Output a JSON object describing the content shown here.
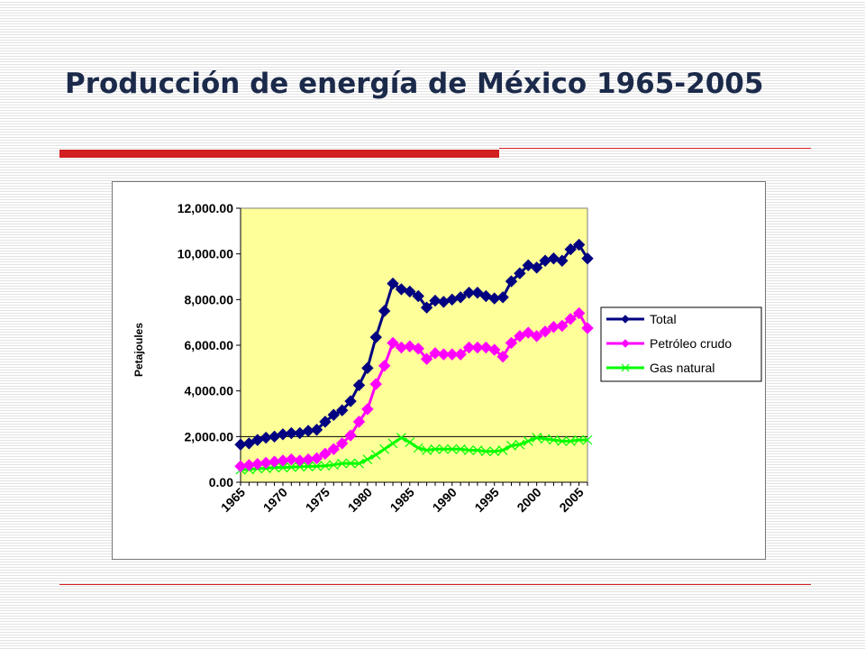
{
  "slide": {
    "title": "Producción de energía de México 1965-2005"
  },
  "chart_data": {
    "type": "line",
    "title": "",
    "xlabel": "",
    "ylabel": "Petajoules",
    "ylim": [
      0,
      12000
    ],
    "yticks": [
      "0.00",
      "2,000.00",
      "4,000.00",
      "6,000.00",
      "8,000.00",
      "10,000.00",
      "12,000.00"
    ],
    "xticks": [
      "1965",
      "1970",
      "1975",
      "1980",
      "1985",
      "1990",
      "1995",
      "2000",
      "2005"
    ],
    "x": [
      1965,
      1966,
      1967,
      1968,
      1969,
      1970,
      1971,
      1972,
      1973,
      1974,
      1975,
      1976,
      1977,
      1978,
      1979,
      1980,
      1981,
      1982,
      1983,
      1984,
      1985,
      1986,
      1987,
      1988,
      1989,
      1990,
      1991,
      1992,
      1993,
      1994,
      1995,
      1996,
      1997,
      1998,
      1999,
      2000,
      2001,
      2002,
      2003,
      2004,
      2005,
      2006
    ],
    "grid": "horizontal at 2,000.00 only",
    "plot_background": "#ffff99",
    "legend": {
      "placement": "right"
    },
    "series": [
      {
        "name": "Total",
        "color": "#000080",
        "marker": "diamond",
        "values": [
          1650,
          1700,
          1850,
          1950,
          2000,
          2100,
          2150,
          2150,
          2250,
          2300,
          2650,
          2950,
          3150,
          3550,
          4250,
          5000,
          6350,
          7500,
          8700,
          8450,
          8350,
          8150,
          7650,
          7950,
          7900,
          8000,
          8100,
          8300,
          8300,
          8150,
          8050,
          8100,
          8800,
          9150,
          9500,
          9400,
          9700,
          9800,
          9700,
          10200,
          10400,
          9800
        ]
      },
      {
        "name": "Petróleo crudo",
        "color": "#ff00ff",
        "marker": "diamond",
        "values": [
          700,
          750,
          800,
          850,
          900,
          950,
          1000,
          950,
          1000,
          1050,
          1250,
          1450,
          1700,
          2050,
          2650,
          3200,
          4300,
          5100,
          6100,
          5900,
          5950,
          5850,
          5400,
          5650,
          5600,
          5600,
          5600,
          5900,
          5900,
          5900,
          5800,
          5500,
          6100,
          6400,
          6550,
          6400,
          6600,
          6800,
          6850,
          7150,
          7400,
          6750
        ]
      },
      {
        "name": "Gas natural",
        "color": "#00ff00",
        "marker": "x",
        "values": [
          550,
          560,
          600,
          610,
          650,
          640,
          660,
          680,
          690,
          700,
          720,
          760,
          820,
          830,
          820,
          1000,
          1200,
          1450,
          1700,
          1950,
          1750,
          1500,
          1400,
          1450,
          1450,
          1450,
          1450,
          1400,
          1400,
          1350,
          1350,
          1400,
          1600,
          1650,
          1800,
          1950,
          1900,
          1850,
          1800,
          1800,
          1850,
          1850
        ]
      }
    ]
  }
}
